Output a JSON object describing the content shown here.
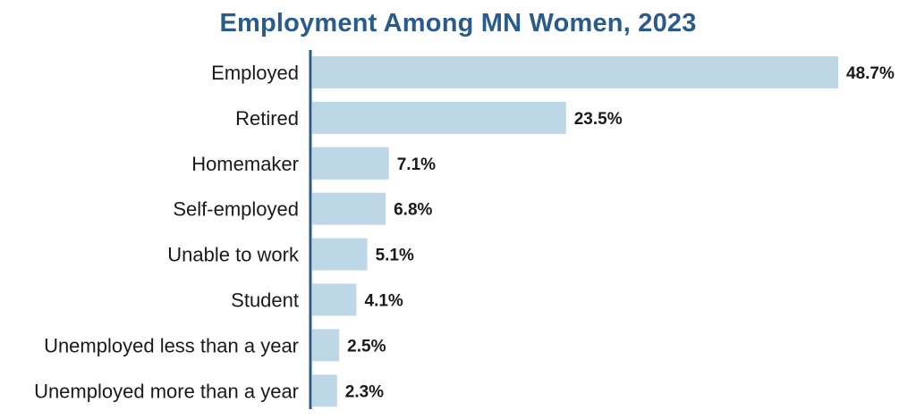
{
  "chart_data": {
    "type": "bar",
    "orientation": "horizontal",
    "title": "Employment Among MN Women, 2023",
    "categories": [
      "Employed",
      "Retired",
      "Homemaker",
      "Self-employed",
      "Unable to work",
      "Student",
      "Unemployed less than a year",
      "Unemployed more than a year"
    ],
    "values": [
      48.7,
      23.5,
      7.1,
      6.8,
      5.1,
      4.1,
      2.5,
      2.3
    ],
    "value_labels": [
      "48.7%",
      "23.5%",
      "7.1%",
      "6.8%",
      "5.1%",
      "4.1%",
      "2.5%",
      "2.3%"
    ],
    "xlim": [
      0,
      48.7
    ],
    "grid": false,
    "legend": "none",
    "colors": {
      "bar": "#bdd7e7",
      "axis": "#2a5b8d",
      "title": "#2a5b8d",
      "text": "#1a1a1a"
    }
  }
}
